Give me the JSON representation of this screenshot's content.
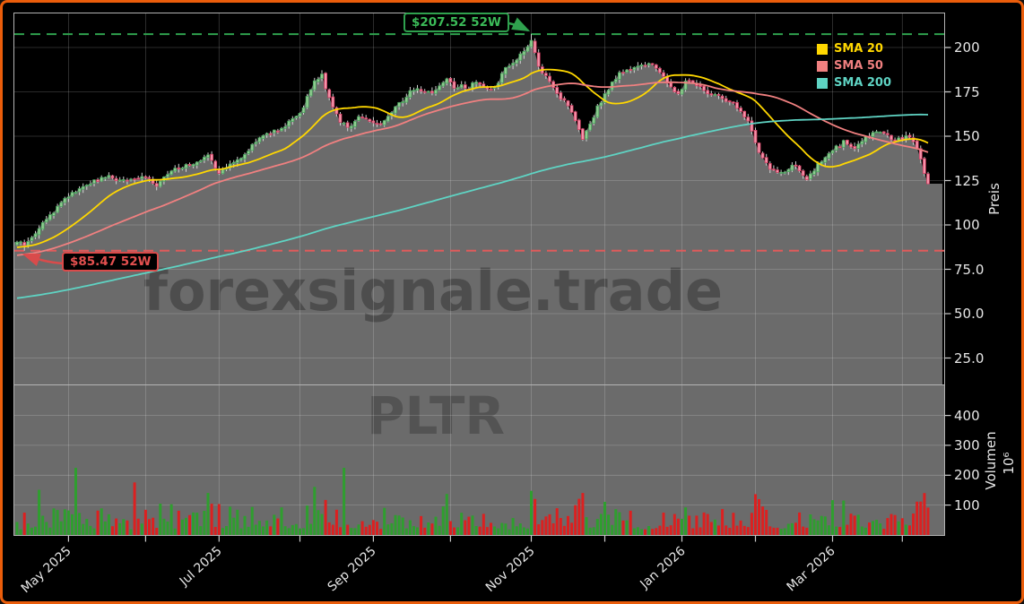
{
  "meta": {
    "instrument": "PLTR",
    "watermark_line1": "forexsignale.trade",
    "watermark_line2": "PLTR"
  },
  "colors": {
    "frame_border": "#ea5d0b",
    "background": "#000000",
    "area_fill": "#6b6b6b",
    "watermark": "#000000",
    "grid": "#ffffff",
    "spine": "#b3b3b3",
    "tick_text": "#e6e6e6",
    "candle_up_fill": "#90cc90",
    "candle_up_edge": "#44a05a",
    "candle_down_fill": "#f593a9",
    "candle_down_edge": "#cf3a5f",
    "wick": "#d9d9d9",
    "volume_up": "#2f9e2f",
    "volume_down": "#dc2020",
    "sma20": "#ffd700",
    "sma50": "#f08080",
    "sma200": "#5fd3c3",
    "high_line": "#2fa14e",
    "low_line": "#e05b5b"
  },
  "legend": [
    {
      "label": "SMA 20",
      "color": "#ffd700"
    },
    {
      "label": "SMA 50",
      "color": "#f08080"
    },
    {
      "label": "SMA 200",
      "color": "#5fd3c3"
    }
  ],
  "annotations": {
    "high": {
      "label": "$207.52 52W",
      "value": 207.52
    },
    "low": {
      "label": "$85.47 52W",
      "value": 85.47
    }
  },
  "axes": {
    "price": {
      "title": "Preis",
      "ticks": [
        {
          "value": 200,
          "label": "200"
        },
        {
          "value": 175,
          "label": "175"
        },
        {
          "value": 150,
          "label": "150"
        },
        {
          "value": 125,
          "label": "125"
        },
        {
          "value": 100,
          "label": "100"
        },
        {
          "value": 75,
          "label": "75.0"
        },
        {
          "value": 50,
          "label": "50.0"
        },
        {
          "value": 25,
          "label": "25.0"
        }
      ]
    },
    "volume": {
      "title": "Volumen",
      "multiplier": "10⁶",
      "ticks": [
        {
          "value": 400,
          "label": "400"
        },
        {
          "value": 300,
          "label": "300"
        },
        {
          "value": 200,
          "label": "200"
        },
        {
          "value": 100,
          "label": "100"
        }
      ]
    },
    "x": {
      "ticks": [
        {
          "day": 14,
          "label": "May 2025"
        },
        {
          "day": 35,
          "label": ""
        },
        {
          "day": 55,
          "label": "Jul 2025"
        },
        {
          "day": 77,
          "label": ""
        },
        {
          "day": 97,
          "label": "Sep 2025"
        },
        {
          "day": 118,
          "label": ""
        },
        {
          "day": 140,
          "label": "Nov 2025"
        },
        {
          "day": 160,
          "label": ""
        },
        {
          "day": 181,
          "label": "Jan 2026"
        },
        {
          "day": 201,
          "label": ""
        },
        {
          "day": 222,
          "label": "Mar 2026"
        },
        {
          "day": 241,
          "label": ""
        }
      ]
    }
  },
  "chart_data": {
    "type": "candlestick",
    "symbol": "PLTR",
    "title": "",
    "ylabel_price": "Preis",
    "ylabel_volume": "Volumen (10^6)",
    "x_range": [
      "Apr 2025",
      "Apr 2026"
    ],
    "price_axis_range_visible": [
      10,
      219
    ],
    "volume_axis_range_millions": [
      0,
      500
    ],
    "high_52w": 207.52,
    "high_52w_date_area": "Nov 2025",
    "low_52w": 85.47,
    "low_52w_date_area": "Apr 2025",
    "last_close_approx": 124,
    "sma_periods": [
      20,
      50,
      200
    ],
    "days_total": 249,
    "price_anchors": [
      [
        0,
        91
      ],
      [
        2,
        88
      ],
      [
        4,
        93
      ],
      [
        8,
        103
      ],
      [
        11,
        110
      ],
      [
        14,
        116
      ],
      [
        17,
        121
      ],
      [
        20,
        124
      ],
      [
        25,
        127
      ],
      [
        30,
        124
      ],
      [
        33,
        127
      ],
      [
        35,
        128
      ],
      [
        38,
        122
      ],
      [
        42,
        130
      ],
      [
        46,
        134
      ],
      [
        50,
        136
      ],
      [
        52,
        139
      ],
      [
        55,
        130
      ],
      [
        58,
        134
      ],
      [
        62,
        139
      ],
      [
        66,
        150
      ],
      [
        70,
        153
      ],
      [
        73,
        156
      ],
      [
        77,
        162
      ],
      [
        79,
        172
      ],
      [
        81,
        181
      ],
      [
        83,
        184
      ],
      [
        84,
        177
      ],
      [
        86,
        166
      ],
      [
        88,
        158
      ],
      [
        91,
        155
      ],
      [
        93,
        160
      ],
      [
        95,
        161
      ],
      [
        98,
        156
      ],
      [
        101,
        161
      ],
      [
        103,
        167
      ],
      [
        106,
        172
      ],
      [
        108,
        177
      ],
      [
        111,
        174
      ],
      [
        113,
        175
      ],
      [
        115,
        179
      ],
      [
        117,
        182
      ],
      [
        119,
        177
      ],
      [
        121,
        179
      ],
      [
        123,
        177
      ],
      [
        125,
        181
      ],
      [
        127,
        178
      ],
      [
        129,
        177
      ],
      [
        131,
        181
      ],
      [
        133,
        188
      ],
      [
        135,
        192
      ],
      [
        137,
        196
      ],
      [
        139,
        201
      ],
      [
        140,
        204
      ],
      [
        141,
        196
      ],
      [
        142,
        190
      ],
      [
        143,
        186
      ],
      [
        145,
        181
      ],
      [
        146,
        178
      ],
      [
        148,
        172
      ],
      [
        150,
        168
      ],
      [
        152,
        158
      ],
      [
        154,
        148
      ],
      [
        156,
        156
      ],
      [
        158,
        166
      ],
      [
        160,
        173
      ],
      [
        162,
        180
      ],
      [
        164,
        186
      ],
      [
        166,
        187
      ],
      [
        168,
        189
      ],
      [
        170,
        190
      ],
      [
        172,
        192
      ],
      [
        174,
        189
      ],
      [
        175,
        186
      ],
      [
        177,
        181
      ],
      [
        179,
        176
      ],
      [
        180,
        174
      ],
      [
        182,
        180
      ],
      [
        183,
        182
      ],
      [
        185,
        179
      ],
      [
        187,
        176
      ],
      [
        189,
        174
      ],
      [
        191,
        172
      ],
      [
        193,
        170
      ],
      [
        195,
        168
      ],
      [
        197,
        164
      ],
      [
        199,
        158
      ],
      [
        201,
        146
      ],
      [
        202,
        140
      ],
      [
        204,
        134
      ],
      [
        205,
        132
      ],
      [
        207,
        129
      ],
      [
        209,
        130
      ],
      [
        211,
        133
      ],
      [
        212,
        134
      ],
      [
        214,
        128
      ],
      [
        215,
        126
      ],
      [
        217,
        131
      ],
      [
        219,
        136
      ],
      [
        221,
        140
      ],
      [
        222,
        142
      ],
      [
        224,
        145
      ],
      [
        225,
        147
      ],
      [
        227,
        145
      ],
      [
        228,
        144
      ],
      [
        230,
        148
      ],
      [
        231,
        150
      ],
      [
        233,
        151
      ],
      [
        235,
        152
      ],
      [
        237,
        150
      ],
      [
        239,
        147
      ],
      [
        241,
        149
      ],
      [
        242,
        150
      ],
      [
        244,
        147
      ],
      [
        245,
        143
      ],
      [
        246,
        136
      ],
      [
        247,
        128
      ],
      [
        248,
        124
      ]
    ],
    "prehistory_anchors": [
      [
        -200,
        32
      ],
      [
        -170,
        36
      ],
      [
        -140,
        42
      ],
      [
        -110,
        55
      ],
      [
        -80,
        66
      ],
      [
        -55,
        74
      ],
      [
        -35,
        80
      ],
      [
        -20,
        84
      ],
      [
        -10,
        87
      ],
      [
        -1,
        90
      ]
    ],
    "volume_base_range_millions": [
      18,
      85
    ],
    "volume_spikes_millions": [
      [
        6,
        145
      ],
      [
        16,
        205
      ],
      [
        32,
        160
      ],
      [
        52,
        150
      ],
      [
        81,
        170
      ],
      [
        89,
        215
      ],
      [
        117,
        135
      ],
      [
        140,
        160
      ],
      [
        154,
        145
      ],
      [
        201,
        150
      ],
      [
        222,
        115
      ],
      [
        247,
        125
      ]
    ]
  }
}
